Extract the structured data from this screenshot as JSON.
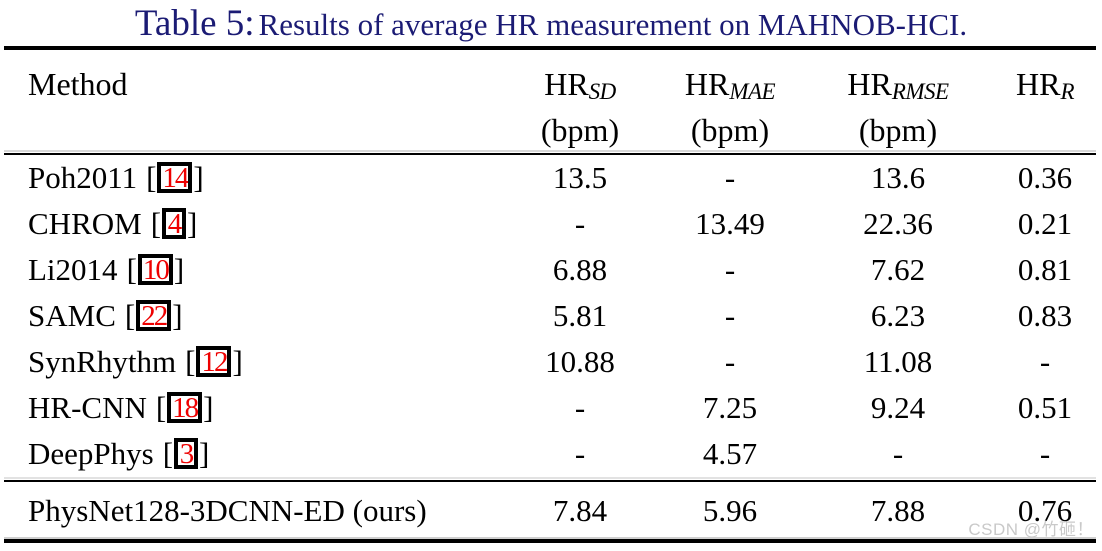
{
  "caption": {
    "prefix": "Table 5:",
    "text": "Results of average HR measurement on MAHNOB-HCI."
  },
  "colors": {
    "caption_navy": "#1b1b74",
    "citation_red": "#ee0000",
    "rule_black": "#000000",
    "watermark_gray": "#c9c9c9"
  },
  "table": {
    "columns": [
      {
        "base": "Method",
        "sub": "",
        "unit": ""
      },
      {
        "base": "HR",
        "sub": "SD",
        "unit": "(bpm)"
      },
      {
        "base": "HR",
        "sub": "MAE",
        "unit": "(bpm)"
      },
      {
        "base": "HR",
        "sub": "RMSE",
        "unit": "(bpm)"
      },
      {
        "base": "HR",
        "sub": "R",
        "unit": ""
      }
    ],
    "rows": [
      {
        "method": "Poh2011",
        "cite": "14",
        "values": [
          "13.5",
          "-",
          "13.6",
          "0.36"
        ]
      },
      {
        "method": "CHROM",
        "cite": "4",
        "values": [
          "-",
          "13.49",
          "22.36",
          "0.21"
        ]
      },
      {
        "method": "Li2014",
        "cite": "10",
        "values": [
          "6.88",
          "-",
          "7.62",
          "0.81"
        ]
      },
      {
        "method": "SAMC",
        "cite": "22",
        "values": [
          "5.81",
          "-",
          "6.23",
          "0.83"
        ]
      },
      {
        "method": "SynRhythm",
        "cite": "12",
        "values": [
          "10.88",
          "-",
          "11.08",
          "-"
        ]
      },
      {
        "method": "HR-CNN",
        "cite": "18",
        "values": [
          "-",
          "7.25",
          "9.24",
          "0.51"
        ]
      },
      {
        "method": "DeepPhys",
        "cite": "3",
        "values": [
          "-",
          "4.57",
          "-",
          "-"
        ]
      }
    ],
    "footer_row": {
      "method": "PhysNet128-3DCNN-ED (ours)",
      "values": [
        "7.84",
        "5.96",
        "7.88",
        "0.76"
      ]
    }
  },
  "watermark": "CSDN @竹砸！"
}
